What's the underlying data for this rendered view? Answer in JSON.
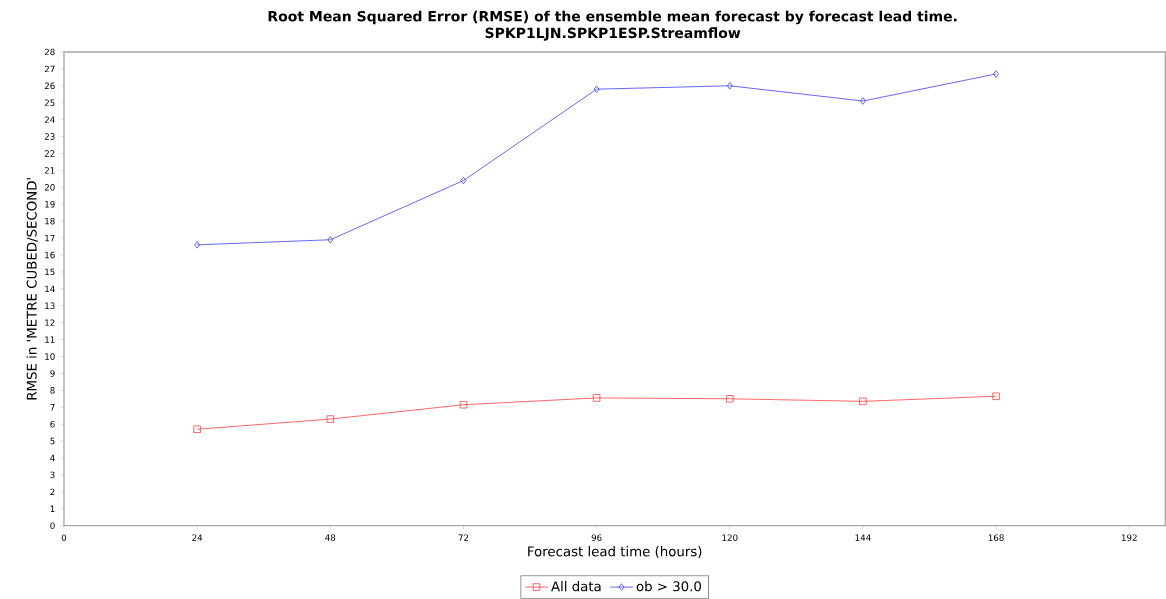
{
  "chart_data": {
    "type": "line",
    "title": "Root Mean Squared Error (RMSE) of the ensemble mean forecast by forecast lead time.",
    "subtitle": "SPKP1LJN.SPKP1ESP.Streamflow",
    "xlabel": "Forecast lead time (hours)",
    "ylabel": "RMSE in 'METRE CUBED/SECOND'",
    "x": [
      24,
      48,
      72,
      96,
      120,
      144,
      168
    ],
    "series": [
      {
        "name": "All data",
        "color": "#ff4040",
        "marker": "square",
        "values": [
          5.7,
          6.3,
          7.15,
          7.55,
          7.5,
          7.35,
          7.65
        ]
      },
      {
        "name": "ob > 30.0",
        "color": "#4040ff",
        "marker": "diamond",
        "values": [
          16.6,
          16.9,
          20.4,
          25.8,
          26.0,
          25.1,
          26.7
        ]
      }
    ],
    "xlim": [
      0,
      198.5
    ],
    "ylim": [
      0,
      28
    ],
    "xticks": [
      0,
      24,
      48,
      72,
      96,
      120,
      144,
      168,
      192
    ],
    "yticks": [
      0,
      1,
      2,
      3,
      4,
      5,
      6,
      7,
      8,
      9,
      10,
      11,
      12,
      13,
      14,
      15,
      16,
      17,
      18,
      19,
      20,
      21,
      22,
      23,
      24,
      25,
      26,
      27,
      28
    ],
    "grid": false,
    "legend": "bottom",
    "line_style": "solid"
  }
}
